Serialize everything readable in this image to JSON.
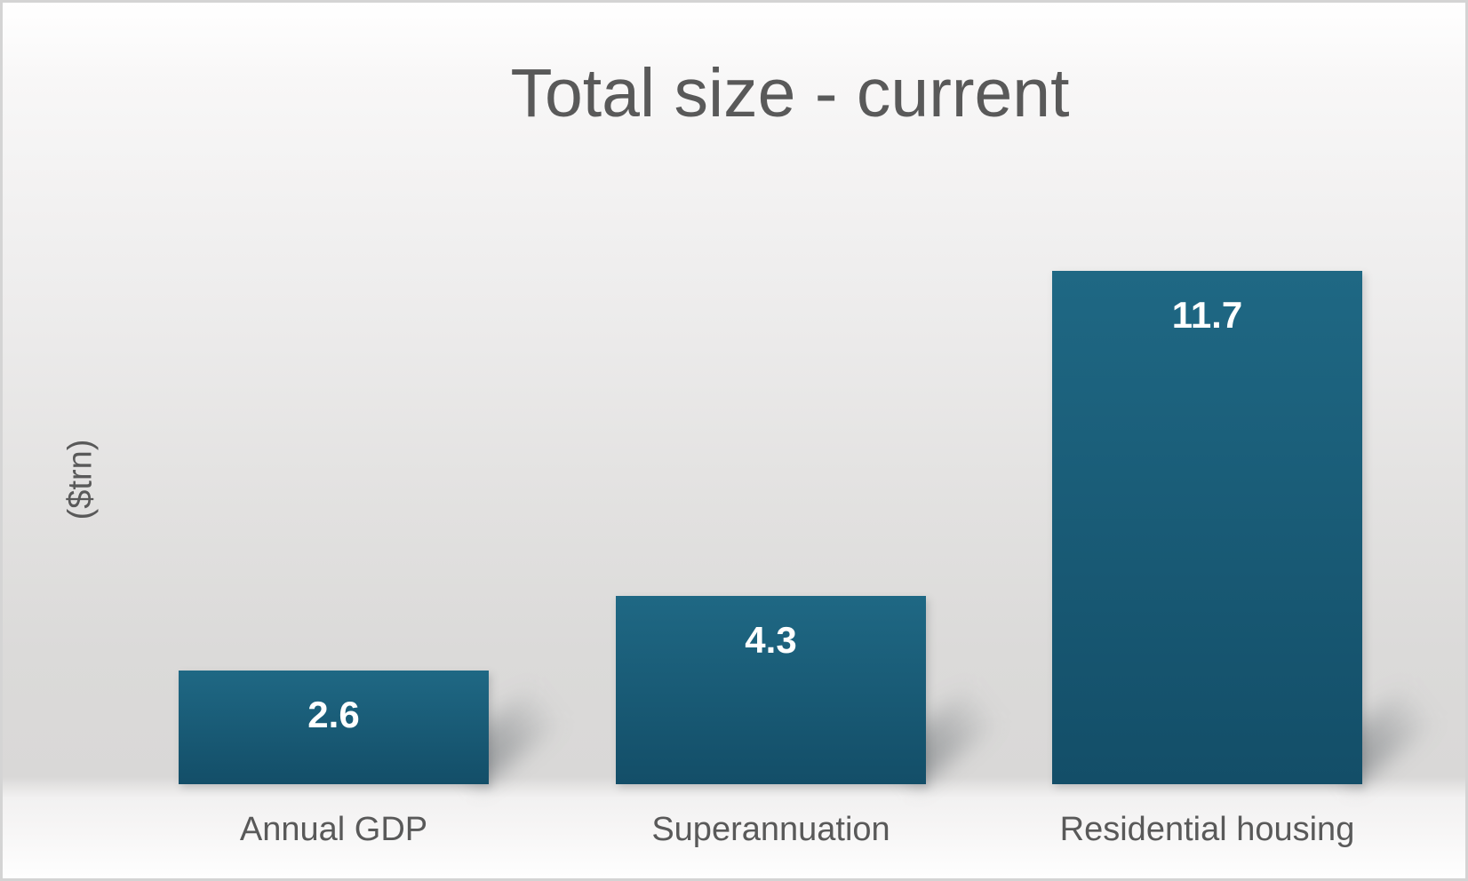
{
  "chart_data": {
    "type": "bar",
    "title": "Total size - current",
    "xlabel": "",
    "ylabel": "($trn)",
    "categories": [
      "Annual GDP",
      "Superannuation",
      "Residential housing"
    ],
    "values": [
      2.6,
      4.3,
      11.7
    ],
    "data_labels": [
      "2.6",
      "4.3",
      "11.7"
    ],
    "value_unit": "$trn",
    "ylim": [
      0,
      12
    ],
    "grid": false,
    "legend": false,
    "orientation": "vertical",
    "value_label_position": "inside-top"
  },
  "colors": {
    "bar_gradient_top": "#1f6884",
    "bar_gradient_bottom": "#134e68",
    "text": "#595959",
    "value_label": "#ffffff",
    "page_border": "#d4d4d4",
    "background_top": "#ffffff",
    "background_mid": "#d9d8d7",
    "background_bottom": "#fefefe"
  }
}
